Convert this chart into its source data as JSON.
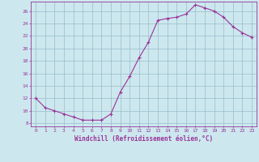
{
  "x": [
    0,
    1,
    2,
    3,
    4,
    5,
    6,
    7,
    8,
    9,
    10,
    11,
    12,
    13,
    14,
    15,
    16,
    17,
    18,
    19,
    20,
    21,
    22,
    23
  ],
  "y": [
    12,
    10.5,
    10,
    9.5,
    9,
    8.5,
    8.5,
    8.5,
    9.5,
    13,
    15.5,
    18.5,
    21,
    24.5,
    24.8,
    25,
    25.5,
    27,
    26.5,
    26,
    25,
    23.5,
    22.5,
    21.8
  ],
  "line_color": "#993399",
  "marker": "+",
  "marker_size": 3,
  "marker_lw": 0.8,
  "line_width": 0.8,
  "bg_color": "#cce8ee",
  "grid_color": "#99bbcc",
  "xlabel": "Windchill (Refroidissement éolien,°C)",
  "xlim": [
    -0.5,
    23.5
  ],
  "ylim": [
    7.5,
    27.5
  ],
  "yticks": [
    8,
    10,
    12,
    14,
    16,
    18,
    20,
    22,
    24,
    26
  ],
  "xtick_labels": [
    "0",
    "1",
    "2",
    "3",
    "4",
    "5",
    "6",
    "7",
    "8",
    "9",
    "10",
    "11",
    "12",
    "13",
    "14",
    "15",
    "16",
    "17",
    "18",
    "19",
    "20",
    "21",
    "22",
    "23"
  ],
  "tick_fontsize": 4.5,
  "xlabel_fontsize": 5.5,
  "tick_color": "#993399",
  "label_color": "#993399",
  "spine_color": "#993399"
}
